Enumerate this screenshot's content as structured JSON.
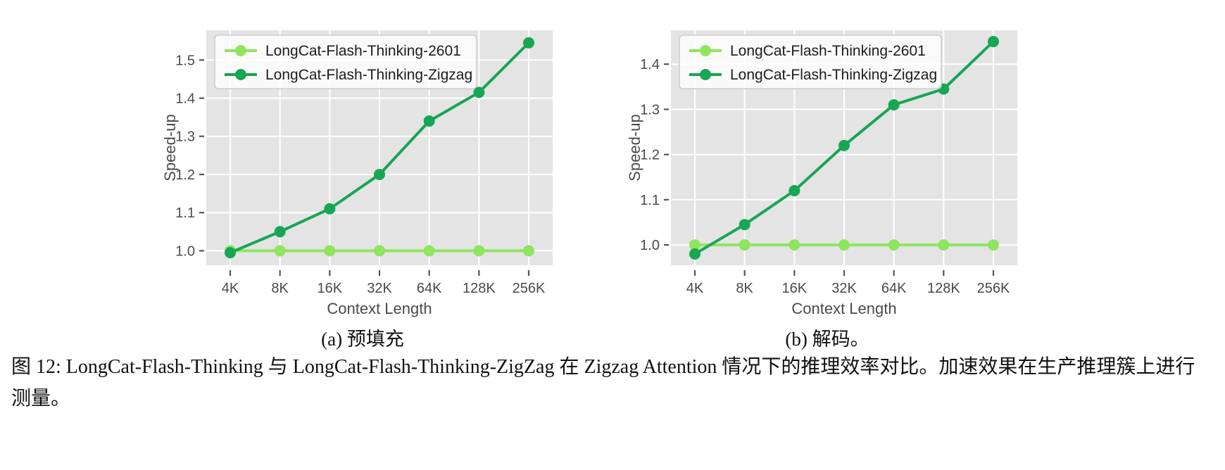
{
  "figure": {
    "caption": "图 12: LongCat-Flash-Thinking 与 LongCat-Flash-Thinking-ZigZag 在 Zigzag Attention 情况下的推理效率对比。加速效果在生产推理簇上进行测量。"
  },
  "colors": {
    "plot_bg": "#e4e4e4",
    "grid": "#ffffff",
    "tick_mark": "#555555",
    "tick_text": "#4a4a4a",
    "axis_label_text": "#4a4a4a",
    "legend_text": "#1c1c1c",
    "legend_border": "#cccccc",
    "series_2601": "#8ee55e",
    "series_zigzag": "#17a653"
  },
  "chart_data": [
    {
      "type": "line",
      "id": "prefill",
      "subcaption": "(a) 预填充",
      "xlabel": "Context Length",
      "ylabel": "Speed-up",
      "categories": [
        "4K",
        "8K",
        "16K",
        "32K",
        "64K",
        "128K",
        "256K"
      ],
      "yticks": [
        1.0,
        1.1,
        1.2,
        1.3,
        1.4,
        1.5
      ],
      "ylim": [
        0.962,
        1.578
      ],
      "grid": true,
      "legend_position": "upper-left",
      "series": [
        {
          "name": "LongCat-Flash-Thinking-2601",
          "color": "#8ee55e",
          "values": [
            1.0,
            1.0,
            1.0,
            1.0,
            1.0,
            1.0,
            1.0
          ]
        },
        {
          "name": "LongCat-Flash-Thinking-Zigzag",
          "color": "#17a653",
          "values": [
            0.995,
            1.05,
            1.11,
            1.2,
            1.34,
            1.415,
            1.545
          ]
        }
      ]
    },
    {
      "type": "line",
      "id": "decode",
      "subcaption": "(b) 解码。",
      "xlabel": "Context Length",
      "ylabel": "Speed-up",
      "categories": [
        "4K",
        "8K",
        "16K",
        "32K",
        "64K",
        "128K",
        "256K"
      ],
      "yticks": [
        1.0,
        1.1,
        1.2,
        1.3,
        1.4
      ],
      "ylim": [
        0.955,
        1.475
      ],
      "grid": true,
      "legend_position": "upper-left",
      "series": [
        {
          "name": "LongCat-Flash-Thinking-2601",
          "color": "#8ee55e",
          "values": [
            1.0,
            1.0,
            1.0,
            1.0,
            1.0,
            1.0,
            1.0
          ]
        },
        {
          "name": "LongCat-Flash-Thinking-Zigzag",
          "color": "#17a653",
          "values": [
            0.98,
            1.045,
            1.12,
            1.22,
            1.31,
            1.345,
            1.45
          ]
        }
      ]
    }
  ]
}
